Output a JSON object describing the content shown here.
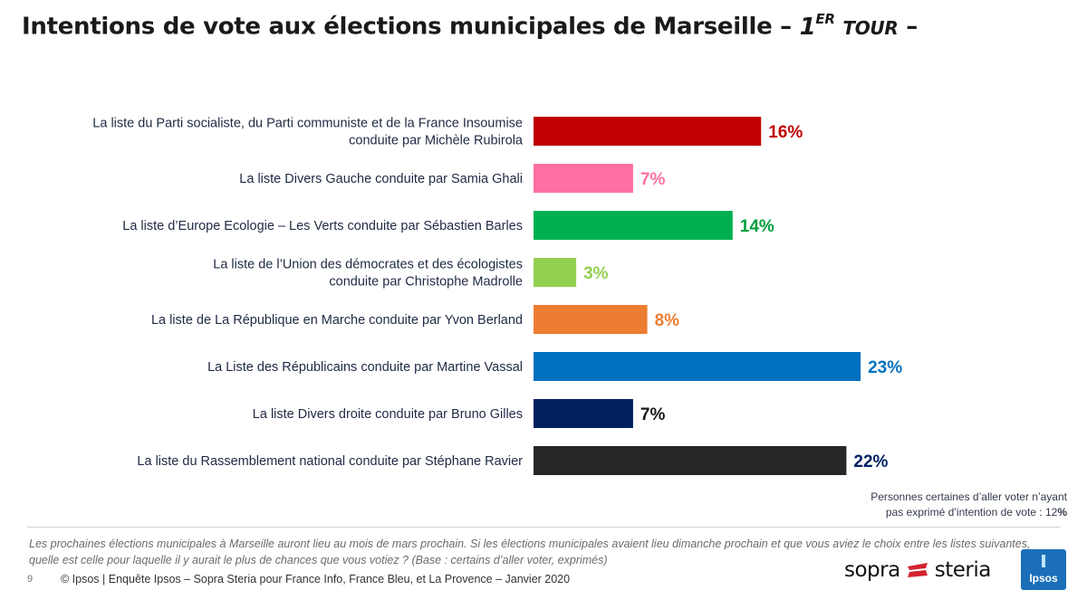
{
  "header": {
    "title_main": "Intentions de vote aux élections municipales de Marseille – ",
    "title_round": "1",
    "title_round_sup": "ER",
    "title_tour": "TOUR",
    "title_end": " –"
  },
  "chart_data": {
    "type": "bar",
    "orientation": "horizontal",
    "title": "Intentions de vote aux élections municipales de Marseille – 1ER TOUR –",
    "xlim": [
      0,
      25
    ],
    "grid": false,
    "categories": [
      [
        "La liste du Parti socialiste, du Parti communiste et de la France Insoumise",
        "conduite par Michèle Rubirola"
      ],
      [
        "La liste Divers Gauche conduite par Samia Ghali"
      ],
      [
        "La liste d’Europe Ecologie – Les Verts conduite par Sébastien Barles"
      ],
      [
        "La liste de l’Union des démocrates et des écologistes",
        "conduite par Christophe Madrolle"
      ],
      [
        "La liste de La République en Marche conduite par Yvon Berland"
      ],
      [
        "La Liste des Républicains conduite par Martine Vassal"
      ],
      [
        "La liste Divers droite conduite par Bruno Gilles"
      ],
      [
        "La liste du Rassemblement national conduite par Stéphane Ravier"
      ]
    ],
    "values": [
      16,
      7,
      14,
      3,
      8,
      23,
      7,
      22
    ],
    "value_labels": [
      "16%",
      "7%",
      "14%",
      "3%",
      "8%",
      "23%",
      "7%",
      "22%"
    ],
    "colors": [
      "#c00000",
      "#ff6fa4",
      "#00b050",
      "#92d050",
      "#ed7d31",
      "#0070c0",
      "#002060",
      "#262626"
    ],
    "label_colors": [
      "#c00000",
      "#ff6fa4",
      "#00a040",
      "#92d050",
      "#ed7d31",
      "#0070c0",
      "#1a1a1a",
      "#002060"
    ]
  },
  "note": {
    "line1": "Personnes certaines d’aller voter n’ayant",
    "line2": "pas exprimé d’intention de vote : 12",
    "line2_unit": "%"
  },
  "footer": {
    "question": "Les prochaines élections municipales à Marseille auront lieu au mois de mars prochain. Si les élections municipales avaient lieu dimanche prochain et que vous aviez le choix entre les listes suivantes, quelle est celle pour laquelle il y aurait le plus de chances que vous votiez ? (Base : certains d’aller voter, exprimés)",
    "page_number": "9",
    "source": "© Ipsos | Enquête Ipsos – Sopra Steria pour France Info, France Bleu, et La Provence – Janvier 2020",
    "logo_sopra_left": "sopra",
    "logo_sopra_right": "steria",
    "logo_ipsos": "Ipsos"
  }
}
